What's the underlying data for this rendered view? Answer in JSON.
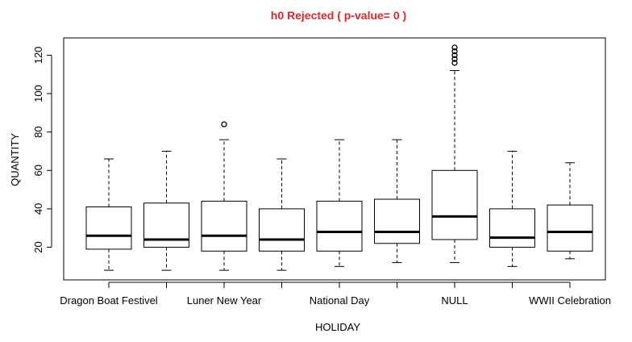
{
  "chart_data": {
    "type": "box",
    "title": "h0 Rejected ( p-value= 0 )",
    "title_color": "#e3262a",
    "xlabel": "HOLIDAY",
    "ylabel": "QUANTITY",
    "ylim": [
      3,
      129
    ],
    "y_ticks": [
      20,
      40,
      60,
      80,
      100,
      120
    ],
    "y_tick_labels": [
      "20",
      "40",
      "60",
      "80",
      "100",
      "120"
    ],
    "x_tick_labels": [
      "Dragon Boat Festivel",
      "",
      "Luner New Year",
      "",
      "National Day",
      "",
      "NULL",
      "",
      "WWII Celebration"
    ],
    "categories": [
      "Dragon Boat Festivel",
      "",
      "Luner New Year",
      "",
      "National Day",
      "",
      "NULL",
      "",
      "WWII Celebration"
    ],
    "boxes": [
      {
        "whisker_low": 8,
        "q1": 19,
        "median": 26,
        "q3": 41,
        "whisker_high": 66,
        "outliers": []
      },
      {
        "whisker_low": 8,
        "q1": 20,
        "median": 24,
        "q3": 43,
        "whisker_high": 70,
        "outliers": []
      },
      {
        "whisker_low": 8,
        "q1": 18,
        "median": 26,
        "q3": 44,
        "whisker_high": 76,
        "outliers": [
          84
        ]
      },
      {
        "whisker_low": 8,
        "q1": 18,
        "median": 24,
        "q3": 40,
        "whisker_high": 66,
        "outliers": []
      },
      {
        "whisker_low": 10,
        "q1": 18,
        "median": 28,
        "q3": 44,
        "whisker_high": 76,
        "outliers": []
      },
      {
        "whisker_low": 12,
        "q1": 22,
        "median": 28,
        "q3": 45,
        "whisker_high": 76,
        "outliers": []
      },
      {
        "whisker_low": 12,
        "q1": 24,
        "median": 36,
        "q3": 60,
        "whisker_high": 112,
        "outliers": [
          116,
          118,
          120,
          122,
          124
        ]
      },
      {
        "whisker_low": 10,
        "q1": 20,
        "median": 25,
        "q3": 40,
        "whisker_high": 70,
        "outliers": []
      },
      {
        "whisker_low": 14,
        "q1": 18,
        "median": 28,
        "q3": 42,
        "whisker_high": 64,
        "outliers": []
      }
    ],
    "grid": false,
    "legend": "none"
  }
}
